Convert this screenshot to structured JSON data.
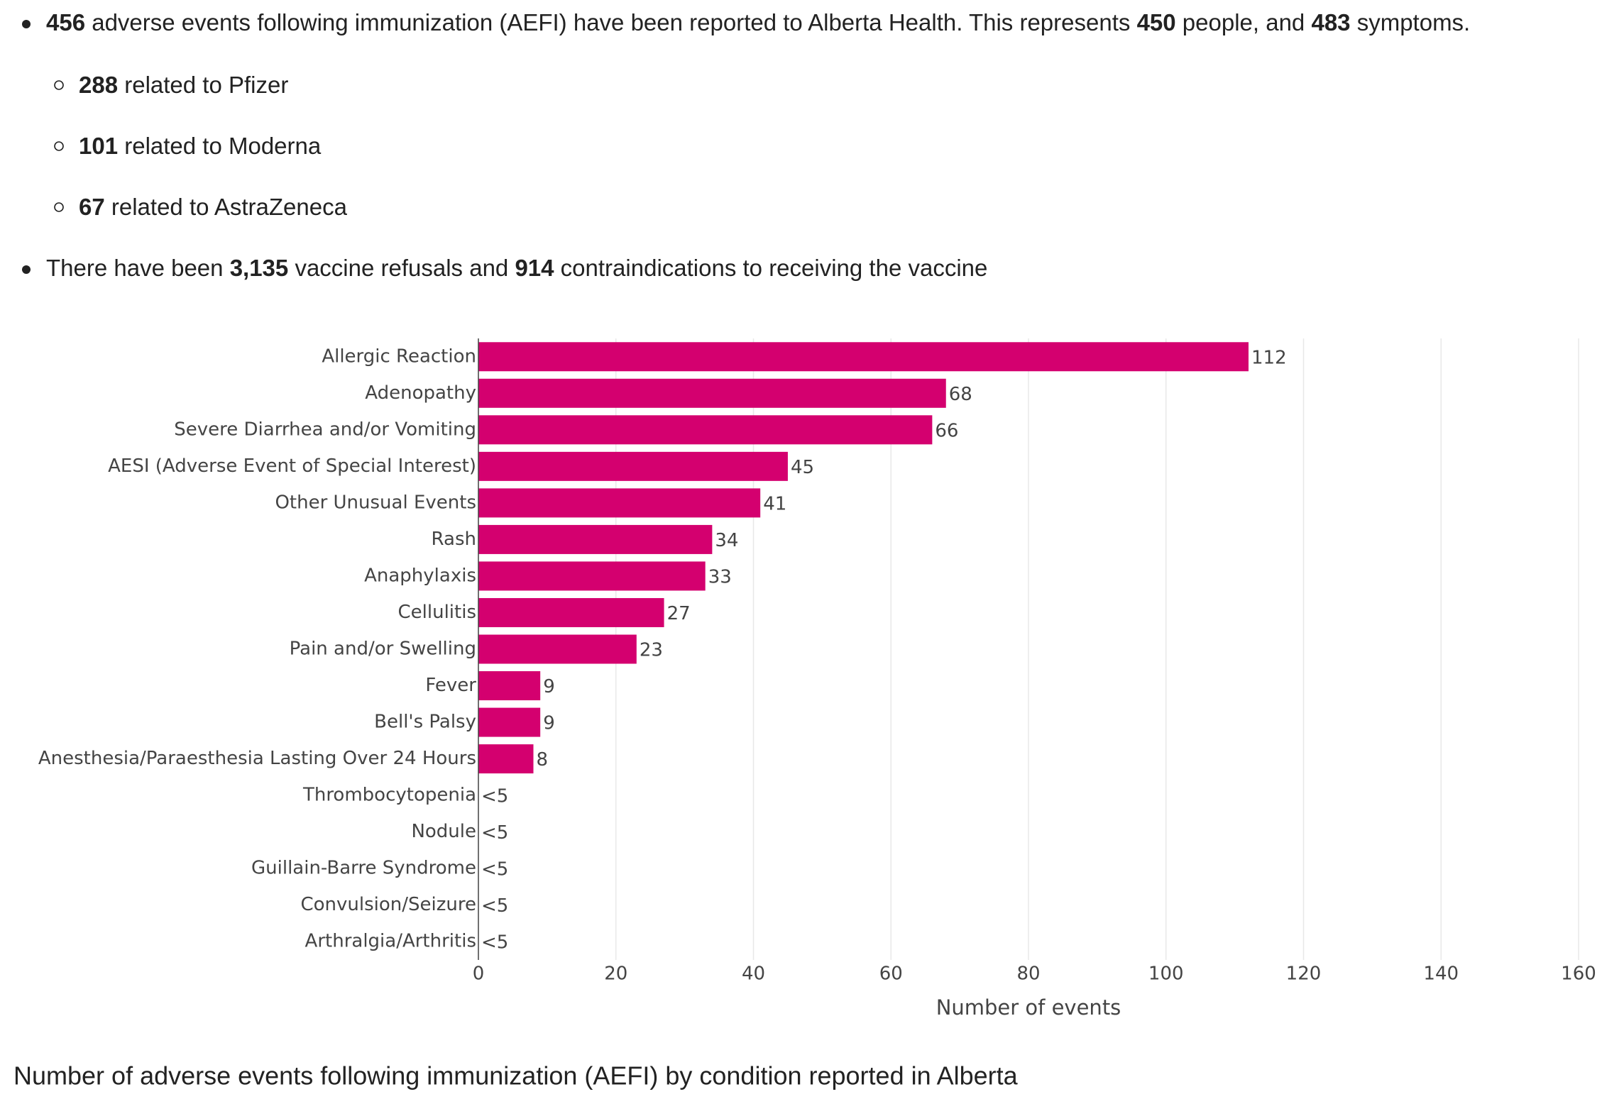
{
  "bullets": [
    {
      "parts": [
        {
          "text": "456",
          "bold": true
        },
        {
          "text": " adverse events following immunization (AEFI) have been reported to Alberta Health. This represents ",
          "bold": false
        },
        {
          "text": "450",
          "bold": true
        },
        {
          "text": " people, and ",
          "bold": false
        },
        {
          "text": "483",
          "bold": true
        },
        {
          "text": " symptoms.",
          "bold": false
        }
      ],
      "sub": [
        {
          "parts": [
            {
              "text": "288",
              "bold": true
            },
            {
              "text": " related to Pfizer",
              "bold": false
            }
          ]
        },
        {
          "parts": [
            {
              "text": "101",
              "bold": true
            },
            {
              "text": " related to Moderna",
              "bold": false
            }
          ]
        },
        {
          "parts": [
            {
              "text": "67",
              "bold": true
            },
            {
              "text": " related to AstraZeneca",
              "bold": false
            }
          ]
        }
      ]
    },
    {
      "parts": [
        {
          "text": "There have been ",
          "bold": false
        },
        {
          "text": "3,135",
          "bold": true
        },
        {
          "text": " vaccine refusals and ",
          "bold": false
        },
        {
          "text": "914",
          "bold": true
        },
        {
          "text": " contraindications to receiving the vaccine",
          "bold": false
        }
      ],
      "sub": []
    }
  ],
  "chart_data": {
    "type": "hbar",
    "xlabel": "Number of events",
    "categories": [
      "Allergic Reaction",
      "Adenopathy",
      "Severe Diarrhea and/or Vomiting",
      "AESI (Adverse Event of Special Interest)",
      "Other Unusual Events",
      "Rash",
      "Anaphylaxis",
      "Cellulitis",
      "Pain and/or Swelling",
      "Fever",
      "Bell's Palsy",
      "Anesthesia/Paraesthesia Lasting Over 24 Hours",
      "Thrombocytopenia",
      "Nodule",
      "Guillain-Barre Syndrome",
      "Convulsion/Seizure",
      "Arthralgia/Arthritis"
    ],
    "values": [
      112,
      68,
      66,
      45,
      41,
      34,
      33,
      27,
      23,
      9,
      9,
      8,
      null,
      null,
      null,
      null,
      null
    ],
    "value_labels": [
      "112",
      "68",
      "66",
      "45",
      "41",
      "34",
      "33",
      "27",
      "23",
      "9",
      "9",
      "8",
      "<5",
      "<5",
      "<5",
      "<5",
      "<5"
    ],
    "color": "#d4006f",
    "xlim": [
      0,
      160
    ],
    "xticks": [
      0,
      20,
      40,
      60,
      80,
      100,
      120,
      140,
      160
    ],
    "grid": true
  },
  "caption": "Number of adverse events following immunization (AEFI) by condition reported in Alberta"
}
